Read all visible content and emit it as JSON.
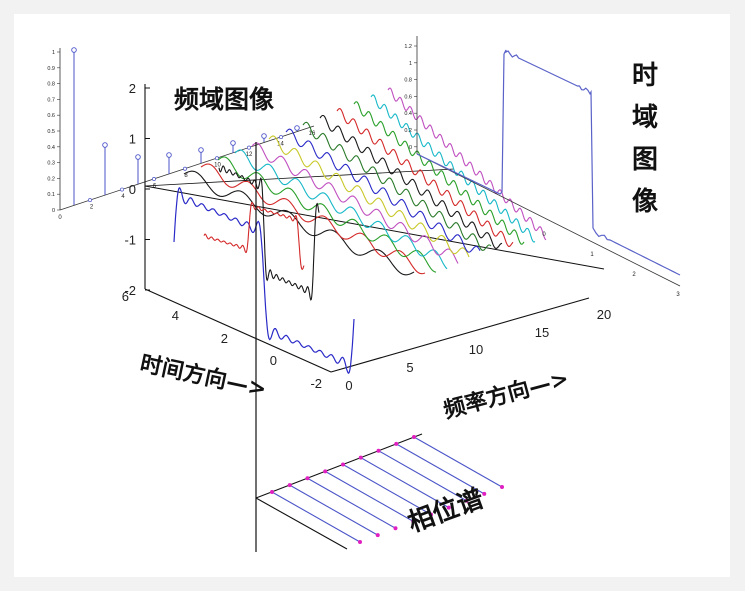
{
  "labels": {
    "freq_image": "频域图像",
    "time_image_chars": [
      "时",
      "域",
      "图",
      "像"
    ],
    "time_direction": "时间方向—>",
    "freq_direction": "频率方向—>",
    "phase_spectrum": "相位谱"
  },
  "main_axes": {
    "z_ticks": [
      "2",
      "1",
      "0",
      "-1",
      "-2"
    ],
    "time_ticks": [
      "6",
      "4",
      "2",
      "0",
      "-2"
    ],
    "freq_ticks": [
      "0",
      "5",
      "10",
      "15",
      "20"
    ]
  },
  "spectrum_inset": {
    "y_ticks": [
      "1",
      "0.9",
      "0.8",
      "0.7",
      "0.6",
      "0.5",
      "0.4",
      "0.3",
      "0.2",
      "0.1",
      "0"
    ],
    "x_ticks": [
      "0",
      "2",
      "4",
      "6",
      "8",
      "10",
      "12",
      "14",
      "16"
    ]
  },
  "time_inset": {
    "y_ticks": [
      "1.2",
      "1",
      "0.8",
      "0.6",
      "0.4",
      "0.2",
      "0"
    ],
    "x_ticks": [
      "0",
      "1",
      "2",
      "3"
    ]
  },
  "colors": {
    "axis": "#111111",
    "stem": "#4b55c8",
    "phase_dot": "#e020c0",
    "square_wave": "#5a62c8",
    "harmonics": [
      "#1a1a1a",
      "#d42a2a",
      "#2aa02a",
      "#18b8c8",
      "#c050c0",
      "#c8c82a",
      "#2a2ac8",
      "#2a7a2a"
    ]
  }
}
